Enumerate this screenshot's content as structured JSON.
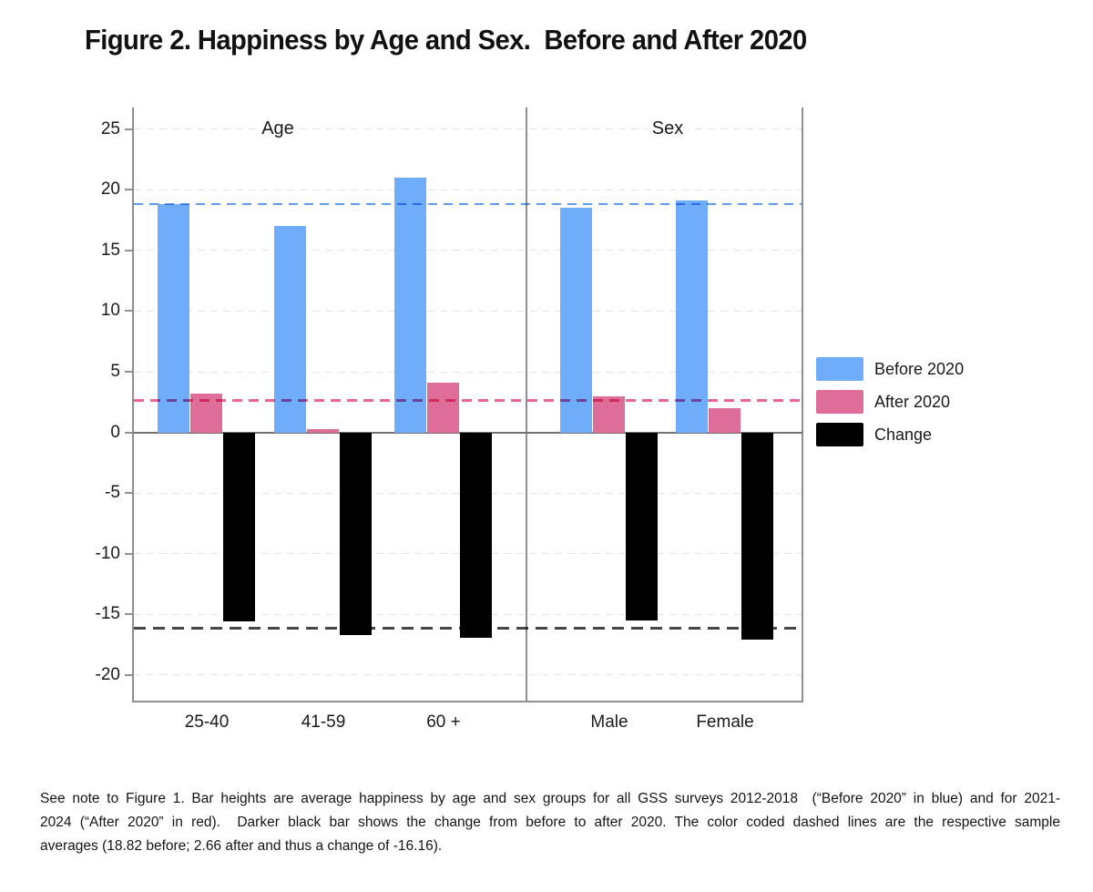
{
  "title": "Figure 2. Happiness by Age and Sex.  Before and After 2020",
  "chart_data": {
    "type": "bar",
    "title": "Figure 2. Happiness by Age and Sex.  Before and After 2020",
    "panels": [
      {
        "label": "Age",
        "categories": [
          "25-40",
          "41-59",
          "60 +"
        ]
      },
      {
        "label": "Sex",
        "categories": [
          "Male",
          "Female"
        ]
      }
    ],
    "categories": [
      "25-40",
      "41-59",
      "60 +",
      "Male",
      "Female"
    ],
    "series": [
      {
        "name": "Before 2020",
        "color": "#6fadfa",
        "values": [
          18.8,
          17.0,
          21.0,
          18.5,
          19.1
        ]
      },
      {
        "name": "After 2020",
        "color": "#df6d99",
        "values": [
          3.2,
          0.3,
          4.1,
          3.0,
          2.0
        ]
      },
      {
        "name": "Change",
        "color": "#000000",
        "values": [
          -15.6,
          -16.7,
          -16.9,
          -15.5,
          -17.1
        ]
      }
    ],
    "reference_lines": [
      {
        "label": "Before 2020 sample average",
        "value": 18.82,
        "color": "#5f9cf4",
        "style": "dashed"
      },
      {
        "label": "After 2020 sample average",
        "value": 2.66,
        "color": "#f0629a",
        "style": "dashed"
      },
      {
        "label": "Change sample average",
        "value": -16.16,
        "color": "#474747",
        "style": "dashed"
      }
    ],
    "y_ticks": [
      25,
      20,
      15,
      10,
      5,
      0,
      -5,
      -10,
      -15,
      -20
    ],
    "ylim": [
      -22.2,
      26.8
    ],
    "xlabel": "",
    "ylabel": "",
    "grid": "horizontal dashed",
    "legend_position": "right"
  },
  "legend": {
    "items": [
      {
        "label": "Before 2020",
        "color": "#6fadfa"
      },
      {
        "label": "After 2020",
        "color": "#df6d99"
      },
      {
        "label": "Change",
        "color": "#000000"
      }
    ]
  },
  "footnote_lines": [
    "See note to Figure 1. Bar heights are average happiness by age and sex groups for all GSS surveys 2012-2018  (“Before 2020” in blue) and for 2021-",
    "2024 (“After 2020” in red).  Darker black bar shows the change from before to after 2020. The color coded dashed lines are the respective sample",
    "averages (18.82 before; 2.66 after and thus a change of -16.16)."
  ]
}
